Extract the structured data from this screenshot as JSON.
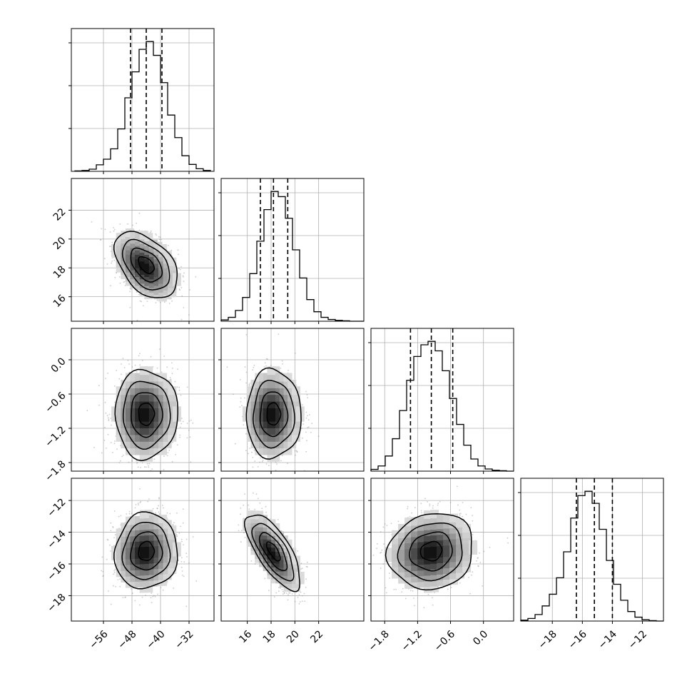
{
  "chart_data": {
    "type": "corner",
    "parameters": [
      {
        "range": [
          -65,
          -25
        ],
        "ticks": [
          -56,
          -48,
          -40,
          -32
        ],
        "tick_labels": [
          "−56",
          "−48",
          "−40",
          "−32"
        ],
        "quantiles": [
          -48.4,
          -44.0,
          -39.6
        ],
        "hist_bins": [
          -64,
          -62,
          -60,
          -58,
          -56,
          -54,
          -52,
          -50,
          -48,
          -46,
          -44,
          -42,
          -40,
          -38,
          -36,
          -34,
          -32,
          -30,
          -28,
          -26
        ],
        "hist_counts": [
          1,
          2,
          5,
          15,
          28,
          52,
          98,
          170,
          230,
          282,
          300,
          268,
          205,
          130,
          78,
          36,
          16,
          6,
          2
        ]
      },
      {
        "range": [
          13.8,
          25.8
        ],
        "ticks": [
          16,
          18,
          20,
          22
        ],
        "tick_labels": [
          "16",
          "18",
          "20",
          "22"
        ],
        "quantiles": [
          17.1,
          18.2,
          19.4
        ],
        "hist_bins": [
          13.8,
          14.4,
          15.0,
          15.6,
          16.2,
          16.8,
          17.4,
          18.0,
          18.6,
          19.2,
          19.8,
          20.4,
          21.0,
          21.6,
          22.2,
          22.8,
          23.4,
          24.0,
          24.6,
          25.2,
          25.8
        ],
        "hist_counts": [
          3,
          9,
          25,
          55,
          110,
          185,
          258,
          300,
          288,
          238,
          165,
          100,
          50,
          22,
          9,
          4,
          2,
          1,
          0,
          0
        ]
      },
      {
        "range": [
          -2.05,
          0.55
        ],
        "ticks": [
          -1.8,
          -1.2,
          -0.6,
          0.0
        ],
        "tick_labels": [
          "−1.8",
          "−1.2",
          "−0.6",
          "0.0"
        ],
        "quantiles": [
          -1.33,
          -0.95,
          -0.56
        ],
        "hist_bins": [
          -2.05,
          -1.92,
          -1.79,
          -1.66,
          -1.53,
          -1.4,
          -1.27,
          -1.14,
          -1.01,
          -0.88,
          -0.75,
          -0.62,
          -0.49,
          -0.36,
          -0.23,
          -0.1,
          0.03,
          0.16,
          0.29,
          0.42,
          0.55
        ],
        "hist_counts": [
          4,
          12,
          35,
          75,
          140,
          210,
          265,
          292,
          300,
          278,
          232,
          168,
          108,
          60,
          28,
          12,
          5,
          2,
          1,
          0
        ]
      },
      {
        "range": [
          -20.1,
          -10.6
        ],
        "ticks": [
          -18,
          -16,
          -14,
          -12
        ],
        "tick_labels": [
          "−18",
          "−16",
          "−14",
          "−12"
        ],
        "quantiles": [
          -16.4,
          -15.2,
          -14.0
        ],
        "hist_bins": [
          -20.1,
          -19.625,
          -19.15,
          -18.675,
          -18.2,
          -17.725,
          -17.25,
          -16.775,
          -16.3,
          -15.825,
          -15.35,
          -14.875,
          -14.4,
          -13.925,
          -13.45,
          -12.975,
          -12.5,
          -12.025,
          -11.55,
          -11.075,
          -10.6
        ],
        "hist_counts": [
          2,
          6,
          15,
          35,
          62,
          100,
          160,
          238,
          290,
          300,
          272,
          212,
          140,
          85,
          48,
          22,
          9,
          3,
          1,
          0
        ]
      }
    ],
    "pairs": [
      {
        "x": 0,
        "y": 1,
        "ylim": [
          14.3,
          24.2
        ],
        "ytick_labels": [
          "16",
          "18",
          "20",
          "22"
        ],
        "ytick_values": [
          16,
          18,
          20,
          22
        ],
        "mean": [
          -44.0,
          18.2
        ],
        "sd": [
          4.4,
          1.15
        ],
        "rho": -0.45
      },
      {
        "x": 0,
        "y": 2,
        "ylim": [
          -1.95,
          0.55
        ],
        "ytick_labels": [
          "−1.8",
          "−1.2",
          "−0.6",
          "0.0"
        ],
        "ytick_values": [
          -1.8,
          -1.2,
          -0.6,
          0.0
        ],
        "mean": [
          -44.0,
          -0.95
        ],
        "sd": [
          4.4,
          0.39
        ],
        "rho": 0.0
      },
      {
        "x": 1,
        "y": 2,
        "ylim": [
          -1.95,
          0.55
        ],
        "mean": [
          18.2,
          -0.95
        ],
        "sd": [
          1.15,
          0.39
        ],
        "rho": 0.0
      },
      {
        "x": 0,
        "y": 3,
        "ylim": [
          -19.6,
          -10.6
        ],
        "ytick_labels": [
          "−12",
          "−14",
          "−16",
          "−18"
        ],
        "ytick_values": [
          -12,
          -14,
          -16,
          -18
        ],
        "mean": [
          -44.0,
          -15.2
        ],
        "sd": [
          4.4,
          1.2
        ],
        "rho": 0.05
      },
      {
        "x": 1,
        "y": 3,
        "ylim": [
          -19.6,
          -10.6
        ],
        "mean": [
          18.2,
          -15.2
        ],
        "sd": [
          1.15,
          1.2
        ],
        "rho": -0.72
      },
      {
        "x": 2,
        "y": 3,
        "ylim": [
          -19.6,
          -10.6
        ],
        "mean": [
          -0.95,
          -15.2
        ],
        "sd": [
          0.39,
          1.2
        ],
        "rho": 0.1
      }
    ],
    "contour_levels_sigma": [
      0.5,
      1.0,
      1.5,
      2.0
    ],
    "grid": true,
    "colors": {
      "line": "#000000",
      "grid": "#b0b0b0",
      "scatter": "#8c8c8c",
      "density_dark": "#000000"
    },
    "xlabel": "",
    "ylabel": ""
  }
}
